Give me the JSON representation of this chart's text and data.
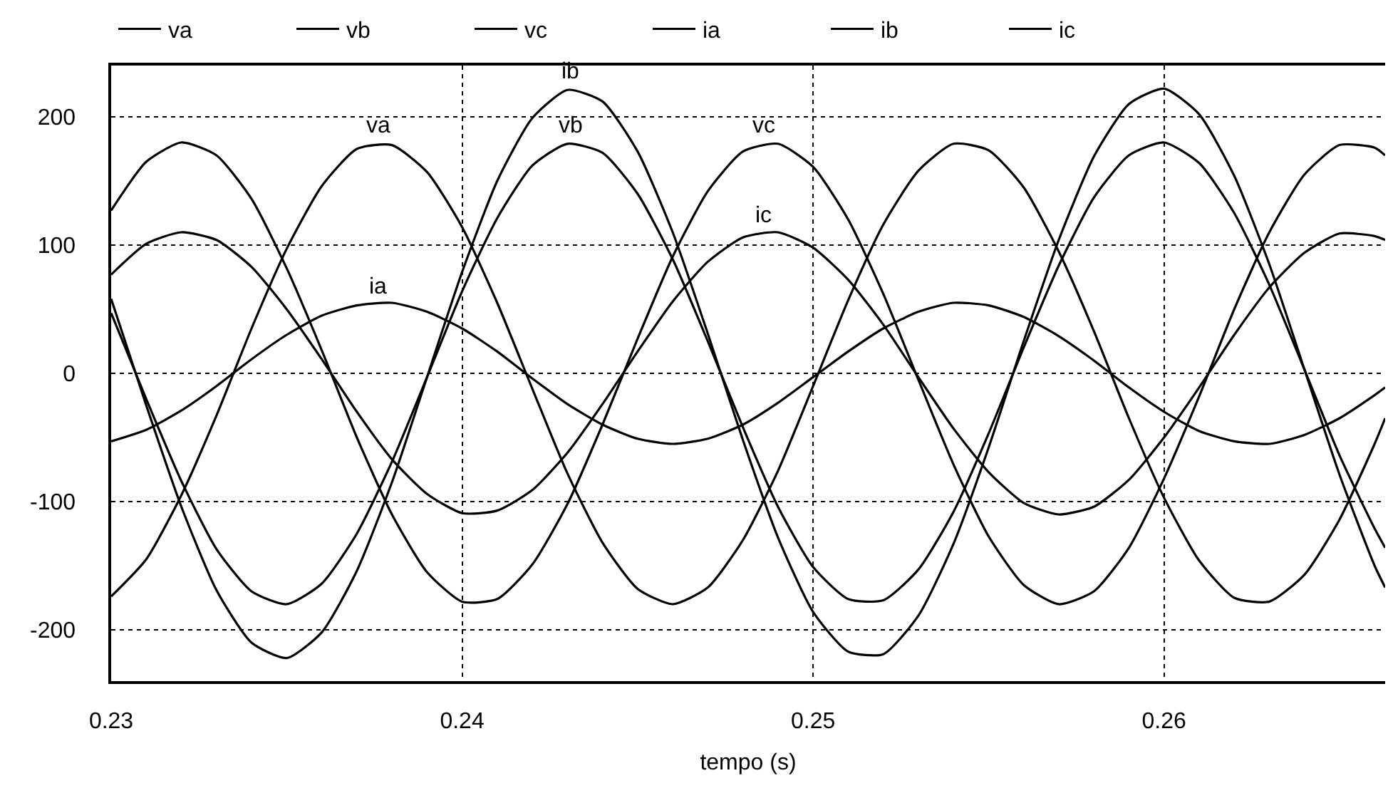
{
  "chart_data": {
    "type": "line",
    "xlabel": "tempo (s)",
    "x": [
      0.23,
      0.231,
      0.232,
      0.233,
      0.234,
      0.235,
      0.236,
      0.237,
      0.238,
      0.239,
      0.24,
      0.241,
      0.242,
      0.243,
      0.244,
      0.245,
      0.246,
      0.247,
      0.248,
      0.249,
      0.25,
      0.251,
      0.252,
      0.253,
      0.254,
      0.255,
      0.256,
      0.257,
      0.258,
      0.259,
      0.26,
      0.261,
      0.262,
      0.263,
      0.264,
      0.265,
      0.266,
      0.2663
    ],
    "series": [
      {
        "name": "va",
        "color": "#000000",
        "values": [
          -174,
          -145,
          -95,
          -33,
          35,
          97,
          146,
          175,
          178,
          157,
          114,
          55,
          -12,
          -78,
          -132,
          -168,
          -180,
          -167,
          -130,
          -76,
          -10,
          57,
          116,
          158,
          179,
          174,
          145,
          95,
          33,
          -35,
          -97,
          -146,
          -175,
          -178,
          -157,
          -114,
          -55,
          -35
        ]
      },
      {
        "name": "vb",
        "color": "#000000",
        "values": [
          47,
          -20,
          -84,
          -137,
          -170,
          -180,
          -164,
          -125,
          -69,
          -3,
          64,
          121,
          162,
          179,
          172,
          140,
          89,
          25,
          -42,
          -104,
          -151,
          -176,
          -177,
          -153,
          -108,
          -47,
          20,
          84,
          137,
          170,
          180,
          164,
          125,
          69,
          3,
          -64,
          -121,
          -136
        ]
      },
      {
        "name": "vc",
        "color": "#000000",
        "values": [
          127,
          165,
          180,
          170,
          136,
          82,
          18,
          -50,
          -110,
          -155,
          -178,
          -176,
          -149,
          -102,
          -40,
          27,
          91,
          142,
          173,
          179,
          161,
          120,
          62,
          -5,
          -71,
          -127,
          -165,
          -180,
          -170,
          -136,
          -82,
          -18,
          50,
          110,
          155,
          178,
          176,
          170
        ]
      },
      {
        "name": "ia",
        "color": "#000000",
        "values": [
          -53,
          -44,
          -29,
          -10,
          11,
          30,
          45,
          53,
          55,
          48,
          35,
          17,
          -4,
          -24,
          -40,
          -51,
          -55,
          -51,
          -40,
          -23,
          -3,
          17,
          35,
          48,
          55,
          53,
          44,
          29,
          10,
          -11,
          -30,
          -45,
          -53,
          -55,
          -48,
          -35,
          -17,
          -11
        ]
      },
      {
        "name": "ib",
        "color": "#000000",
        "values": [
          58,
          -25,
          -104,
          -169,
          -210,
          -222,
          -202,
          -154,
          -85,
          -3,
          79,
          150,
          199,
          221,
          212,
          173,
          110,
          31,
          -52,
          -128,
          -186,
          -217,
          -219,
          -189,
          -133,
          -58,
          25,
          104,
          169,
          210,
          222,
          202,
          154,
          85,
          3,
          -79,
          -150,
          -167
        ]
      },
      {
        "name": "ic",
        "color": "#000000",
        "values": [
          77,
          101,
          110,
          104,
          83,
          50,
          11,
          -30,
          -67,
          -94,
          -109,
          -107,
          -91,
          -62,
          -24,
          17,
          56,
          87,
          106,
          110,
          98,
          73,
          38,
          -3,
          -43,
          -77,
          -101,
          -110,
          -104,
          -83,
          -50,
          -11,
          30,
          67,
          94,
          109,
          107,
          104
        ]
      }
    ],
    "annotations": [
      {
        "text": "va",
        "x": 0.2376,
        "y": 180
      },
      {
        "text": "ib",
        "x": 0.2431,
        "y": 222
      },
      {
        "text": "vb",
        "x": 0.2431,
        "y": 180
      },
      {
        "text": "vc",
        "x": 0.2486,
        "y": 180
      },
      {
        "text": "ic",
        "x": 0.2486,
        "y": 110
      },
      {
        "text": "ia",
        "x": 0.2376,
        "y": 55
      }
    ],
    "xlim": [
      0.23,
      0.2663
    ],
    "xticks": [
      0.23,
      0.24,
      0.25,
      0.26
    ],
    "ylim": [
      -240,
      240
    ],
    "yticks": [
      -200,
      -100,
      0,
      100,
      200
    ],
    "grid": true,
    "legend": "top",
    "marker": "none",
    "line_style": "solid"
  }
}
